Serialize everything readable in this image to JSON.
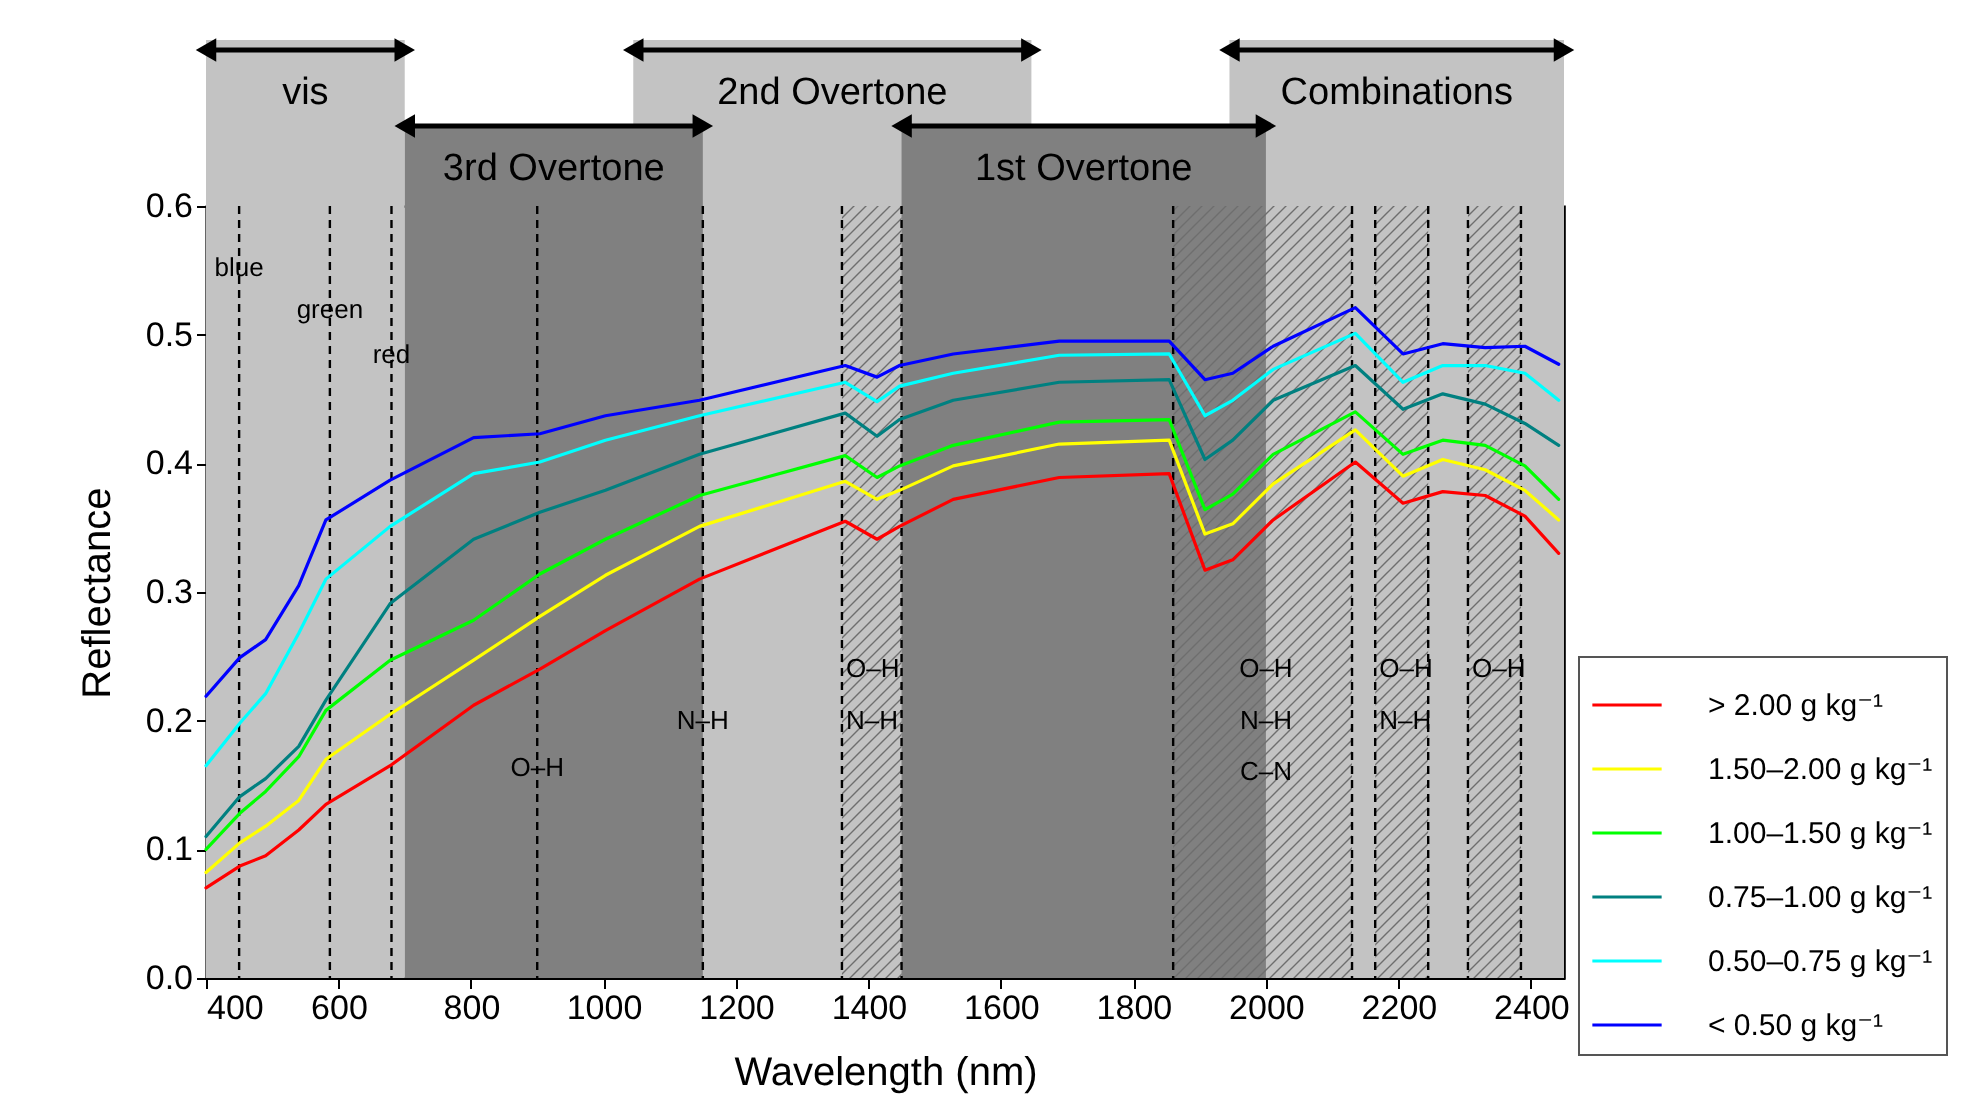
{
  "chart_data": {
    "type": "line",
    "xlabel": "Wavelength (nm)",
    "ylabel": "Reflectance",
    "x": [
      400,
      451,
      490,
      540,
      581,
      678,
      804,
      904,
      1003,
      1145,
      1365,
      1413,
      1447,
      1528,
      1688,
      1854,
      1908,
      1950,
      2011,
      2135,
      2207,
      2267,
      2331,
      2391,
      2442
    ],
    "series": [
      {
        "name": "> 2.00 g kg⁻¹",
        "color": "#ff0000",
        "values": [
          0.07,
          0.087,
          0.095,
          0.115,
          0.135,
          0.165,
          0.212,
          0.24,
          0.27,
          0.31,
          0.355,
          0.341,
          0.351,
          0.372,
          0.389,
          0.392,
          0.317,
          0.325,
          0.356,
          0.401,
          0.369,
          0.378,
          0.375,
          0.359,
          0.33
        ]
      },
      {
        "name": "1.50–2.00 g kg⁻¹",
        "color": "#ffff00",
        "values": [
          0.082,
          0.105,
          0.118,
          0.138,
          0.17,
          0.205,
          0.247,
          0.281,
          0.313,
          0.351,
          0.386,
          0.372,
          0.379,
          0.398,
          0.415,
          0.418,
          0.345,
          0.353,
          0.384,
          0.426,
          0.39,
          0.403,
          0.395,
          0.379,
          0.356
        ]
      },
      {
        "name": "1.00–1.50 g kg⁻¹",
        "color": "#00ff00",
        "values": [
          0.1,
          0.128,
          0.145,
          0.172,
          0.208,
          0.247,
          0.278,
          0.314,
          0.341,
          0.375,
          0.406,
          0.389,
          0.398,
          0.414,
          0.432,
          0.434,
          0.364,
          0.376,
          0.407,
          0.44,
          0.407,
          0.418,
          0.414,
          0.398,
          0.372
        ]
      },
      {
        "name": "0.75–1.00 g kg⁻¹",
        "color": "#008080",
        "values": [
          0.11,
          0.141,
          0.155,
          0.18,
          0.216,
          0.291,
          0.341,
          0.362,
          0.379,
          0.407,
          0.439,
          0.421,
          0.434,
          0.449,
          0.463,
          0.465,
          0.403,
          0.418,
          0.449,
          0.476,
          0.442,
          0.454,
          0.446,
          0.431,
          0.414
        ]
      },
      {
        "name": "0.50–0.75 g kg⁻¹",
        "color": "#00ffff",
        "values": [
          0.165,
          0.198,
          0.221,
          0.268,
          0.31,
          0.351,
          0.392,
          0.401,
          0.418,
          0.437,
          0.463,
          0.448,
          0.46,
          0.47,
          0.484,
          0.485,
          0.437,
          0.449,
          0.473,
          0.501,
          0.463,
          0.476,
          0.476,
          0.47,
          0.449
        ]
      },
      {
        "name": "< 0.50 g kg⁻¹",
        "color": "#0000ff",
        "values": [
          0.219,
          0.249,
          0.263,
          0.305,
          0.356,
          0.387,
          0.42,
          0.423,
          0.437,
          0.449,
          0.476,
          0.467,
          0.476,
          0.485,
          0.495,
          0.495,
          0.465,
          0.47,
          0.491,
          0.521,
          0.485,
          0.493,
          0.49,
          0.491,
          0.477
        ]
      }
    ],
    "xlim": [
      400,
      2450
    ],
    "xticks": [
      400,
      600,
      800,
      1000,
      1200,
      1400,
      1600,
      1800,
      2000,
      2200,
      2400
    ],
    "ylim": [
      0,
      0.6
    ],
    "yticks": [
      {
        "value": 0,
        "label": "0.0"
      },
      0.1,
      0.2,
      0.3,
      0.4,
      0.5,
      0.6
    ],
    "grid": false,
    "legend": "right",
    "bands": [
      {
        "axis": "x",
        "from": 400,
        "to": 700,
        "label": "vis",
        "color": "#c3c3c3"
      },
      {
        "axis": "x",
        "from": 1045,
        "to": 1646,
        "label": "2nd Overtone",
        "color": "#c3c3c3"
      },
      {
        "axis": "x",
        "from": 1945,
        "to": 2450,
        "label": "Combinations",
        "color": "#c3c3c3"
      },
      {
        "axis": "x",
        "from": 700,
        "to": 1150,
        "label": "3rd Overtone",
        "color": "#808080"
      },
      {
        "axis": "x",
        "from": 1450,
        "to": 2000,
        "label": "1st Overtone",
        "color": "#808080"
      },
      {
        "axis": "x",
        "from": 1360,
        "to": 1450,
        "color": "#6e6e6e"
      },
      {
        "axis": "x",
        "from": 1860,
        "to": 2130,
        "color": "#6e6e6e"
      },
      {
        "axis": "x",
        "from": 2165,
        "to": 2245,
        "color": "#6e6e6e"
      },
      {
        "axis": "x",
        "from": 2305,
        "to": 2385,
        "color": "#6e6e6e"
      }
    ],
    "ref_lines": [
      {
        "axis": "x",
        "value": 450,
        "color": "#000000",
        "line_style": "dashed"
      },
      {
        "axis": "x",
        "value": 587,
        "color": "#000000",
        "line_style": "dashed"
      },
      {
        "axis": "x",
        "value": 680,
        "color": "#000000",
        "line_style": "dashed"
      },
      {
        "axis": "x",
        "value": 900,
        "color": "#000000",
        "line_style": "dashed"
      },
      {
        "axis": "x",
        "value": 1150,
        "color": "#000000",
        "line_style": "dashed"
      },
      {
        "axis": "x",
        "value": 1360,
        "color": "#000000",
        "line_style": "dashed"
      },
      {
        "axis": "x",
        "value": 1450,
        "color": "#000000",
        "line_style": "dashed"
      },
      {
        "axis": "x",
        "value": 1860,
        "color": "#000000",
        "line_style": "dashed"
      },
      {
        "axis": "x",
        "value": 2130,
        "color": "#000000",
        "line_style": "dashed"
      },
      {
        "axis": "x",
        "value": 2165,
        "color": "#000000",
        "line_style": "dashed"
      },
      {
        "axis": "x",
        "value": 2245,
        "color": "#000000",
        "line_style": "dashed"
      },
      {
        "axis": "x",
        "value": 2305,
        "color": "#000000",
        "line_style": "dashed"
      },
      {
        "axis": "x",
        "value": 2385,
        "color": "#000000",
        "line_style": "dashed"
      }
    ],
    "annotations": [
      {
        "text": "blue",
        "x": 450,
        "y": 0.552
      },
      {
        "text": "green",
        "x": 587,
        "y": 0.519
      },
      {
        "text": "red",
        "x": 680,
        "y": 0.484
      },
      {
        "text": "O–H",
        "x": 900,
        "y": 0.163
      },
      {
        "text": "N–H",
        "x": 1150,
        "y": 0.2
      },
      {
        "text": "O–H",
        "x": 1360,
        "y": 0.24
      },
      {
        "text": "N–H",
        "x": 1360,
        "y": 0.2
      },
      {
        "text": "O–H",
        "x": 2000,
        "y": 0.24
      },
      {
        "text": "N–H",
        "x": 2000,
        "y": 0.2
      },
      {
        "text": "C–N",
        "x": 2000,
        "y": 0.16
      },
      {
        "text": "O–H",
        "x": 2165,
        "y": 0.24
      },
      {
        "text": "N–H",
        "x": 2165,
        "y": 0.2
      },
      {
        "text": "O–H",
        "x": 2305,
        "y": 0.24
      }
    ]
  }
}
